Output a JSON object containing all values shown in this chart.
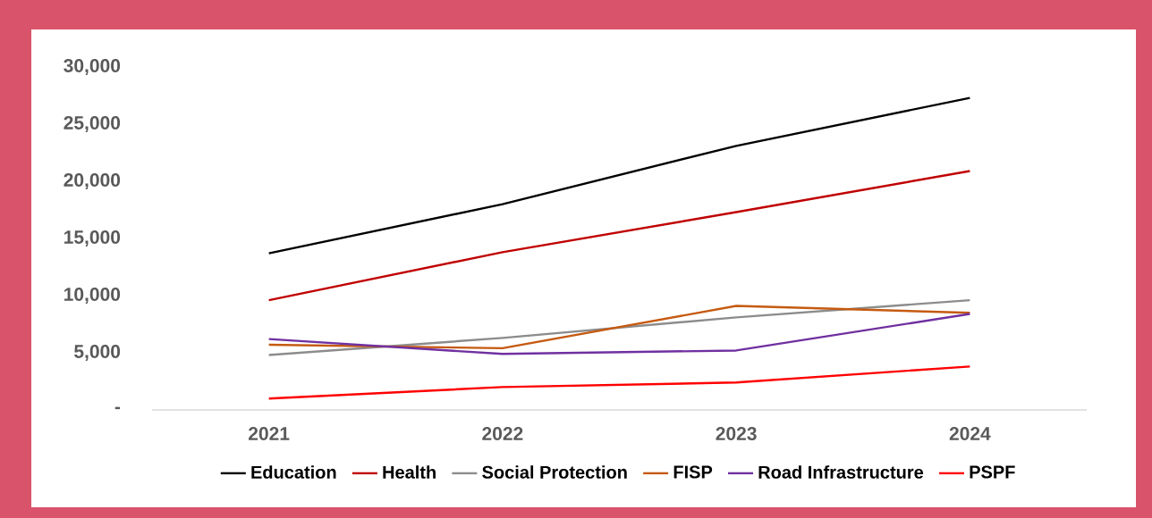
{
  "chart_data": {
    "type": "line",
    "categories": [
      "2021",
      "2022",
      "2023",
      "2024"
    ],
    "series": [
      {
        "name": "Education",
        "color": "#000000",
        "values": [
          13700,
          18000,
          23100,
          27300
        ]
      },
      {
        "name": "Health",
        "color": "#c00000",
        "values": [
          9600,
          13800,
          17300,
          20900
        ]
      },
      {
        "name": "Social Protection",
        "color": "#8c8c8c",
        "values": [
          4800,
          6300,
          8100,
          9600
        ]
      },
      {
        "name": "FISP",
        "color": "#c55a11",
        "values": [
          5700,
          5400,
          9100,
          8500
        ]
      },
      {
        "name": "Road Infrastructure",
        "color": "#7030a0",
        "values": [
          6200,
          4900,
          5200,
          8400
        ]
      },
      {
        "name": "PSPF",
        "color": "#ff0000",
        "values": [
          1000,
          2000,
          2400,
          3800
        ]
      }
    ],
    "ylim": [
      0,
      30000
    ],
    "yticks": [
      {
        "value": 0,
        "label": "-"
      },
      {
        "value": 5000,
        "label": "5,000"
      },
      {
        "value": 10000,
        "label": "10,000"
      },
      {
        "value": 15000,
        "label": "15,000"
      },
      {
        "value": 20000,
        "label": "20,000"
      },
      {
        "value": 25000,
        "label": "25,000"
      },
      {
        "value": 30000,
        "label": "30,000"
      }
    ],
    "grid": false,
    "legend": "bottom",
    "marker": "none",
    "line_style": "solid"
  }
}
